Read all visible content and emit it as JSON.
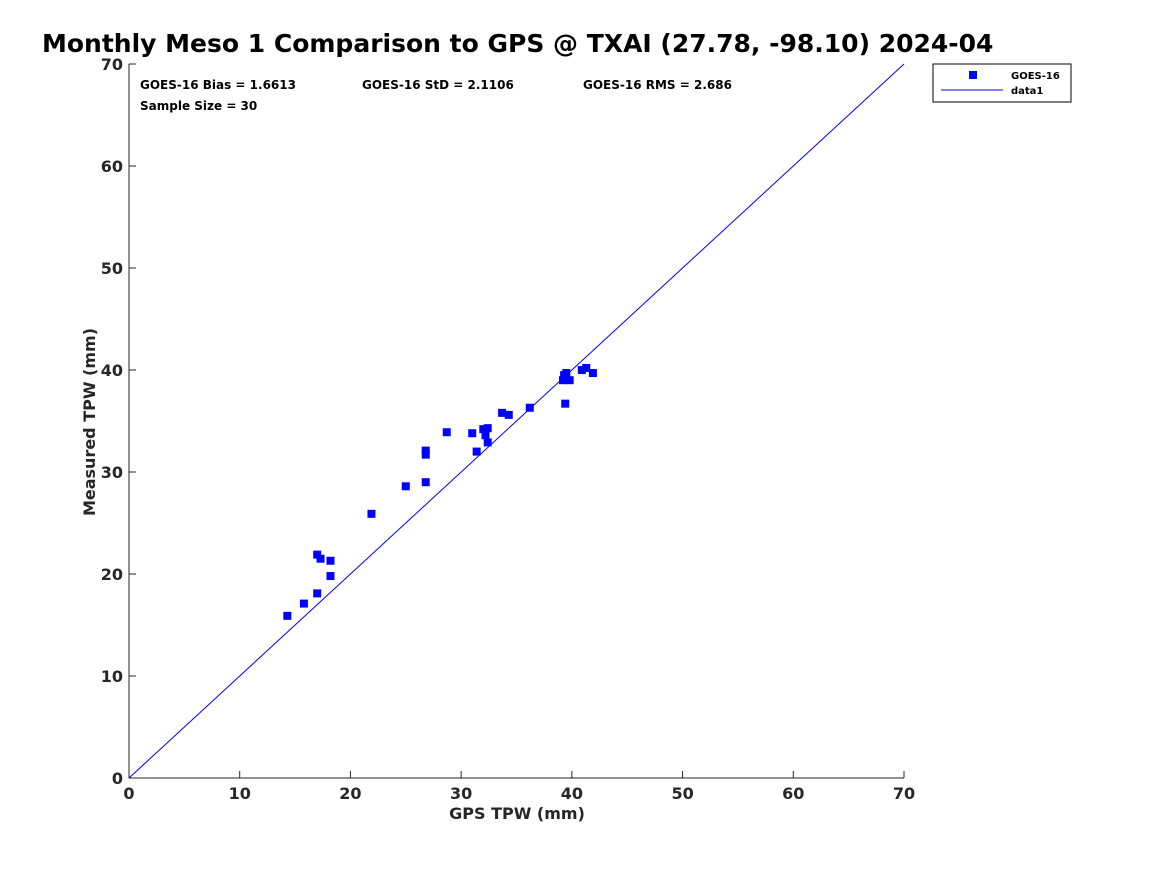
{
  "chart_data": {
    "type": "scatter",
    "title": "Monthly Meso 1 Comparison to GPS @ TXAI (27.78, -98.10) 2024-04",
    "xlabel": "GPS TPW (mm)",
    "ylabel": "Measured TPW (mm)",
    "xlim": [
      0,
      70
    ],
    "ylim": [
      0,
      70
    ],
    "xticks": [
      "0",
      "10",
      "20",
      "30",
      "40",
      "50",
      "60",
      "70"
    ],
    "yticks": [
      "0",
      "10",
      "20",
      "30",
      "40",
      "50",
      "60",
      "70"
    ],
    "grid": false,
    "legend_position": "outside-top-right",
    "stats": {
      "bias": "GOES-16 Bias = 1.6613",
      "std": "GOES-16 StD = 2.1106",
      "rms": "GOES-16 RMS = 2.686",
      "sample": "Sample Size = 30"
    },
    "series": [
      {
        "name": "GOES-16",
        "kind": "scatter",
        "marker": "square",
        "color": "#0000ff",
        "points": [
          [
            14.3,
            15.9
          ],
          [
            15.8,
            17.1
          ],
          [
            17.0,
            18.1
          ],
          [
            17.0,
            21.9
          ],
          [
            17.3,
            21.5
          ],
          [
            18.2,
            21.3
          ],
          [
            18.2,
            19.8
          ],
          [
            21.9,
            25.9
          ],
          [
            25.0,
            28.6
          ],
          [
            26.8,
            29.0
          ],
          [
            26.8,
            31.7
          ],
          [
            26.8,
            32.1
          ],
          [
            28.7,
            33.9
          ],
          [
            31.0,
            33.8
          ],
          [
            31.4,
            32.0
          ],
          [
            32.0,
            34.2
          ],
          [
            32.2,
            33.6
          ],
          [
            32.4,
            34.3
          ],
          [
            32.4,
            32.9
          ],
          [
            33.7,
            35.8
          ],
          [
            34.3,
            35.6
          ],
          [
            36.2,
            36.3
          ],
          [
            39.2,
            39.0
          ],
          [
            39.3,
            39.5
          ],
          [
            39.4,
            36.7
          ],
          [
            39.5,
            39.7
          ],
          [
            39.8,
            39.0
          ],
          [
            40.9,
            40.0
          ],
          [
            41.3,
            40.2
          ],
          [
            41.9,
            39.7
          ]
        ]
      },
      {
        "name": "data1",
        "kind": "line",
        "color": "#0000ff",
        "points": [
          [
            0,
            0
          ],
          [
            70,
            70
          ]
        ]
      }
    ]
  }
}
